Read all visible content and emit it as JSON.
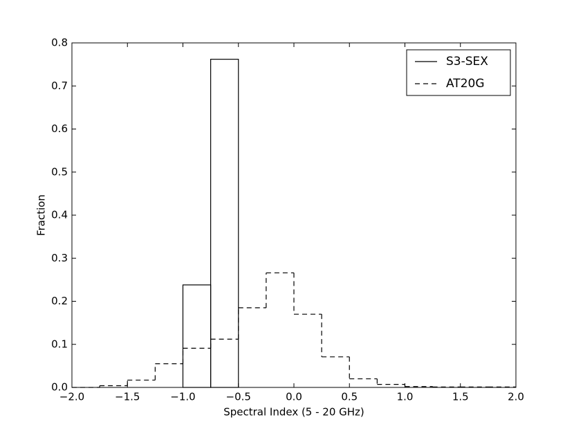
{
  "chart_data": {
    "type": "histogram",
    "x_label": "Spectral Index (5 - 20 GHz)",
    "y_label": "Fraction",
    "xlim": [
      -2.0,
      2.0
    ],
    "ylim": [
      0,
      0.8
    ],
    "xticks": [
      {
        "value": -2.0,
        "label": "−2.0"
      },
      {
        "value": -1.5,
        "label": "−1.5"
      },
      {
        "value": -1.0,
        "label": "−1.0"
      },
      {
        "value": -0.5,
        "label": "−0.5"
      },
      {
        "value": 0,
        "label": "0.0"
      },
      0.5,
      {
        "value": 1.0,
        "label": "1.0"
      },
      1.5,
      {
        "value": 2.0,
        "label": "2.0"
      }
    ],
    "yticks": [
      {
        "value": 0,
        "label": "0.0"
      },
      0.1,
      0.2,
      0.3,
      0.4,
      0.5,
      0.6,
      0.7,
      0.8
    ],
    "legend": "upper right",
    "series": [
      {
        "name": "S3-SEX",
        "color": "#000000",
        "linestyle": "solid",
        "bins": [
          -1.0,
          -0.75,
          -0.5
        ],
        "values": [
          0.238,
          0.762
        ]
      },
      {
        "name": "AT20G",
        "color": "#000000",
        "linestyle": "dashed",
        "bins": [
          -2.0,
          -1.75,
          -1.5,
          -1.25,
          -1.0,
          -0.75,
          -0.5,
          -0.25,
          0,
          0.25,
          0.5,
          0.75,
          1.0,
          1.25,
          1.5,
          1.75,
          2.0
        ],
        "values": [
          0.0,
          0.004,
          0.017,
          0.055,
          0.091,
          0.112,
          0.185,
          0.266,
          0.17,
          0.071,
          0.02,
          0.007,
          0.002,
          0.001,
          0.001,
          0.001
        ]
      }
    ]
  }
}
